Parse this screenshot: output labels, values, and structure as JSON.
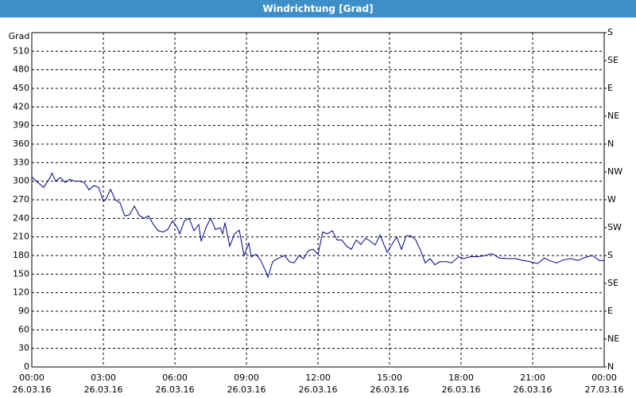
{
  "chart_data": {
    "type": "line",
    "title": "Windrichtung [Grad]",
    "y_label": "Grad",
    "x": [
      0,
      0.25,
      0.5,
      0.75,
      0.85,
      1.0,
      1.2,
      1.4,
      1.6,
      1.8,
      2.0,
      2.2,
      2.4,
      2.6,
      2.8,
      3.0,
      3.1,
      3.3,
      3.5,
      3.7,
      3.9,
      4.1,
      4.3,
      4.5,
      4.7,
      4.9,
      5.1,
      5.3,
      5.5,
      5.7,
      5.9,
      6.1,
      6.2,
      6.4,
      6.6,
      6.8,
      7.0,
      7.1,
      7.3,
      7.5,
      7.7,
      7.9,
      8.0,
      8.1,
      8.3,
      8.5,
      8.7,
      8.9,
      9.1,
      9.2,
      9.4,
      9.6,
      9.8,
      9.9,
      10.1,
      10.3,
      10.6,
      10.8,
      11.0,
      11.2,
      11.4,
      11.6,
      11.8,
      12.0,
      12.2,
      12.4,
      12.6,
      12.8,
      13.0,
      13.2,
      13.4,
      13.6,
      13.8,
      14.0,
      14.2,
      14.4,
      14.6,
      14.9,
      15.1,
      15.3,
      15.5,
      15.7,
      15.9,
      16.1,
      16.3,
      16.5,
      16.7,
      16.9,
      17.1,
      17.4,
      17.6,
      17.9,
      18.1,
      18.4,
      18.7,
      19.0,
      19.3,
      19.6,
      20.0,
      20.3,
      20.6,
      20.9,
      21.2,
      21.5,
      21.7,
      22.0,
      22.3,
      22.6,
      22.9,
      23.2,
      23.5,
      23.8,
      24.0
    ],
    "series": [
      {
        "color": "#00008b",
        "values": [
          307,
          298,
          290,
          305,
          313,
          300,
          306,
          298,
          303,
          300,
          300,
          298,
          286,
          293,
          290,
          268,
          270,
          287,
          270,
          265,
          244,
          246,
          260,
          245,
          240,
          244,
          230,
          220,
          218,
          222,
          236,
          225,
          215,
          236,
          240,
          220,
          230,
          203,
          225,
          240,
          222,
          225,
          215,
          233,
          195,
          215,
          221,
          180,
          200,
          178,
          182,
          172,
          155,
          145,
          170,
          175,
          180,
          170,
          168,
          180,
          175,
          188,
          190,
          182,
          218,
          215,
          220,
          205,
          205,
          195,
          190,
          205,
          198,
          208,
          203,
          197,
          213,
          185,
          198,
          210,
          190,
          212,
          212,
          205,
          188,
          168,
          175,
          165,
          170,
          170,
          168,
          178,
          175,
          178,
          178,
          180,
          183,
          176,
          175,
          175,
          172,
          170,
          167,
          176,
          172,
          168,
          173,
          175,
          172,
          177,
          180,
          172,
          172
        ]
      }
    ],
    "xlim": [
      0,
      24
    ],
    "xticks": [
      {
        "value": 0,
        "label": "00:00"
      },
      {
        "value": 3,
        "label": "03:00"
      },
      {
        "value": 6,
        "label": "06:00"
      },
      {
        "value": 9,
        "label": "09:00"
      },
      {
        "value": 12,
        "label": "12:00"
      },
      {
        "value": 15,
        "label": "15:00"
      },
      {
        "value": 18,
        "label": "18:00"
      },
      {
        "value": 21,
        "label": "21:00"
      },
      {
        "value": 24,
        "label": "00:00"
      }
    ],
    "xtick_dates": [
      "26.03.16",
      "26.03.16",
      "26.03.16",
      "26.03.16",
      "26.03.16",
      "26.03.16",
      "26.03.16",
      "26.03.16",
      "27.03.16"
    ],
    "ylim": [
      0,
      540
    ],
    "yticks": [
      0,
      30,
      60,
      90,
      120,
      150,
      180,
      210,
      240,
      270,
      300,
      330,
      360,
      390,
      420,
      450,
      480,
      510
    ],
    "y2lim": [
      0,
      540
    ],
    "y2ticks": [
      {
        "value": 0,
        "label": "N"
      },
      {
        "value": 45,
        "label": "NE"
      },
      {
        "value": 90,
        "label": "E"
      },
      {
        "value": 135,
        "label": "SE"
      },
      {
        "value": 180,
        "label": "S"
      },
      {
        "value": 225,
        "label": "SW"
      },
      {
        "value": 270,
        "label": "W"
      },
      {
        "value": 315,
        "label": "NW"
      },
      {
        "value": 360,
        "label": "N"
      },
      {
        "value": 405,
        "label": "NE"
      },
      {
        "value": 450,
        "label": "E"
      },
      {
        "value": 495,
        "label": "SE"
      },
      {
        "value": 540,
        "label": "S"
      }
    ],
    "grid": true
  }
}
